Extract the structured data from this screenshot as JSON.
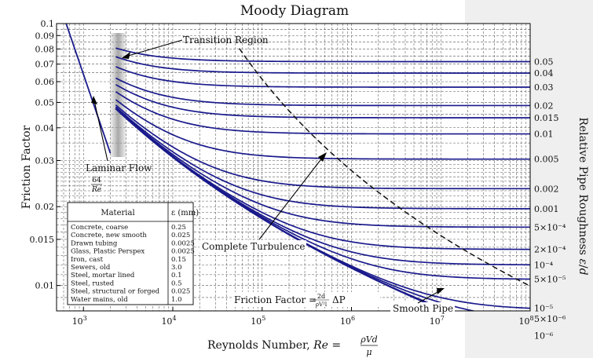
{
  "chart_data": {
    "type": "line",
    "title": "Moody Diagram",
    "xlabel": "Reynolds Number, Re = ρVd/μ",
    "ylabel": "Friction Factor",
    "right_label": "Relative Pipe Roughness ε/d",
    "xlim": [
      500,
      100000000
    ],
    "ylim": [
      0.008,
      0.1
    ],
    "x_scale": "log",
    "y_scale": "log",
    "grid": true,
    "x_ticks": [
      "10^3",
      "10^4",
      "10^5",
      "10^6",
      "10^7",
      "10^8"
    ],
    "y_ticks": [
      "0.1",
      "0.09",
      "0.08",
      "0.07",
      "0.06",
      "0.05",
      "0.04",
      "0.03",
      "0.02",
      "0.015",
      "0.01"
    ],
    "roughness_series": [
      {
        "label": "0.05",
        "value": 0.05
      },
      {
        "label": "0.04",
        "value": 0.04
      },
      {
        "label": "0.03",
        "value": 0.03
      },
      {
        "label": "0.02",
        "value": 0.02
      },
      {
        "label": "0.015",
        "value": 0.015
      },
      {
        "label": "0.01",
        "value": 0.01
      },
      {
        "label": "0.005",
        "value": 0.005
      },
      {
        "label": "0.002",
        "value": 0.002
      },
      {
        "label": "0.001",
        "value": 0.001
      },
      {
        "label": "5×10⁻⁴",
        "value": 0.0005
      },
      {
        "label": "2×10⁻⁴",
        "value": 0.0002
      },
      {
        "label": "10⁻⁴",
        "value": 0.0001
      },
      {
        "label": "5×10⁻⁵",
        "value": 5e-05
      },
      {
        "label": "10⁻⁵",
        "value": 1e-05
      },
      {
        "label": "5×10⁻⁶",
        "value": 5e-06
      },
      {
        "label": "10⁻⁶",
        "value": 1e-06
      },
      {
        "label": "",
        "value": 0
      }
    ],
    "laminar": {
      "re_range": [
        600,
        2000
      ],
      "formula": "f = 64/Re"
    },
    "transition_region": {
      "re_range": [
        2000,
        3000
      ]
    },
    "annotations": {
      "transition": "Transition Region",
      "laminar_line1": "Laminar Flow",
      "laminar_num": "64",
      "laminar_den": "Re",
      "complete": "Complete Turbulence",
      "friction_prefix": "Friction Factor =",
      "friction_num": "2d",
      "friction_den": "ρV²l",
      "friction_suffix": "ΔP",
      "smooth": "Smooth Pipe"
    },
    "material_table": {
      "headers": [
        "Material",
        "ε (mm)"
      ],
      "rows": [
        [
          "Concrete, coarse",
          "0.25"
        ],
        [
          "Concrete, new smooth",
          "0.025"
        ],
        [
          "Drawn tubing",
          "0.0025"
        ],
        [
          "Glass, Plastic Perspex",
          "0.0025"
        ],
        [
          "Iron, cast",
          "0.15"
        ],
        [
          "Sewers, old",
          "3.0"
        ],
        [
          "Steel, mortar lined",
          "0.1"
        ],
        [
          "Steel, rusted",
          "0.5"
        ],
        [
          "Steel, structural or forged",
          "0.025"
        ],
        [
          "Water mains, old",
          "1.0"
        ]
      ]
    }
  }
}
